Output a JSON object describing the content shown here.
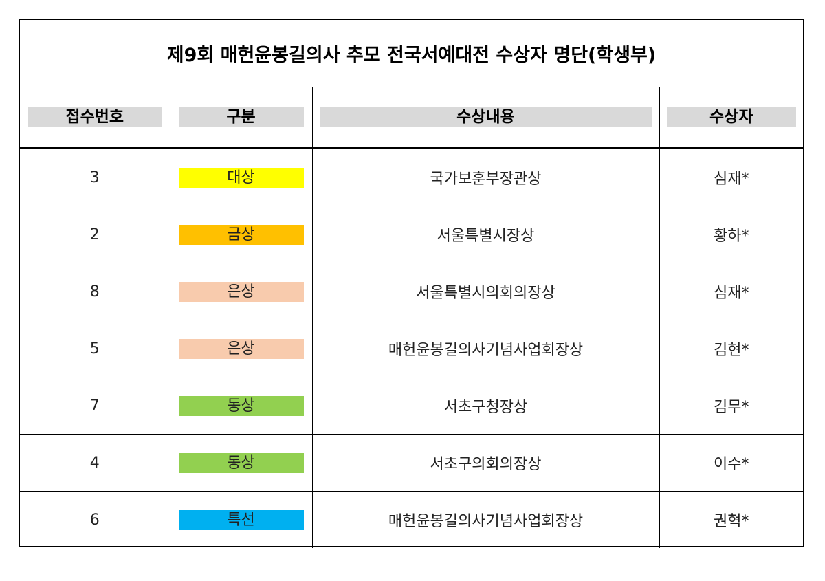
{
  "title": "제9회 매헌윤봉길의사 추모 전국서예대전 수상자 명단(학생부)",
  "table": {
    "header": [
      "접수번호",
      "구분",
      "수상내용",
      "수상자"
    ],
    "rows": [
      {
        "number": 3,
        "category": "대상",
        "color": "#ffff00",
        "award": "국가보훈부장관상",
        "winner": "심재*"
      },
      {
        "number": 2,
        "category": "금상",
        "color": "#ffc000",
        "award": "서울특별시장상",
        "winner": "황하*"
      },
      {
        "number": 8,
        "category": "은상",
        "color": "#f8cbad",
        "award": "서울특별시의회의장상",
        "winner": "심재*"
      },
      {
        "number": 5,
        "category": "은상",
        "color": "#f8cbad",
        "award": "매헌윤봉길의사기념사업회장상",
        "winner": "김현*"
      },
      {
        "number": 7,
        "category": "동상",
        "color": "#92d050",
        "award": "서초구청장상",
        "winner": "김무*"
      },
      {
        "number": 4,
        "category": "동상",
        "color": "#92d050",
        "award": "서초구의회의장상",
        "winner": "이수*"
      },
      {
        "number": 6,
        "category": "특선",
        "color": "#00b0f0",
        "award": "매헌윤봉길의사기념사업회장상",
        "winner": "권혁*"
      }
    ]
  }
}
